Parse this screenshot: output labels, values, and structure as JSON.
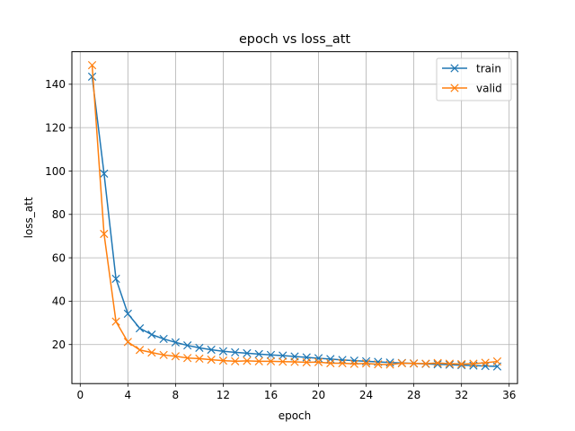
{
  "chart_data": {
    "type": "line",
    "title": "epoch vs loss_att",
    "xlabel": "epoch",
    "ylabel": "loss_att",
    "xlim": [
      -0.7,
      36.7
    ],
    "ylim": [
      2.0,
      155.0
    ],
    "xticks": [
      0,
      4,
      8,
      12,
      16,
      20,
      24,
      28,
      32,
      36
    ],
    "yticks": [
      20,
      40,
      60,
      80,
      100,
      120,
      140
    ],
    "grid": true,
    "legend_position": "top-right",
    "marker": "x",
    "x": [
      1,
      2,
      3,
      4,
      5,
      6,
      7,
      8,
      9,
      10,
      11,
      12,
      13,
      14,
      15,
      16,
      17,
      18,
      19,
      20,
      21,
      22,
      23,
      24,
      25,
      26,
      27,
      28,
      29,
      30,
      31,
      32,
      33,
      34,
      35
    ],
    "series": [
      {
        "name": "train",
        "color": "#1f77b4",
        "values": [
          143.5,
          98.8,
          50.3,
          34.2,
          27.5,
          24.6,
          22.6,
          21.0,
          19.6,
          18.5,
          17.6,
          16.9,
          16.4,
          16.0,
          15.6,
          15.2,
          14.9,
          14.5,
          14.1,
          13.7,
          13.3,
          12.9,
          12.6,
          12.3,
          12.0,
          11.7,
          11.5,
          11.3,
          11.1,
          10.9,
          10.7,
          10.5,
          10.3,
          10.1,
          9.9
        ]
      },
      {
        "name": "valid",
        "color": "#ff7f0e",
        "values": [
          148.8,
          71.0,
          30.6,
          21.2,
          17.5,
          16.3,
          15.2,
          14.6,
          13.8,
          13.5,
          13.0,
          12.6,
          12.3,
          12.5,
          12.3,
          12.3,
          12.1,
          12.0,
          11.8,
          11.9,
          11.4,
          11.4,
          11.1,
          11.3,
          10.9,
          10.8,
          11.4,
          11.3,
          11.2,
          11.5,
          11.2,
          11.0,
          11.2,
          11.6,
          12.2
        ]
      }
    ]
  }
}
